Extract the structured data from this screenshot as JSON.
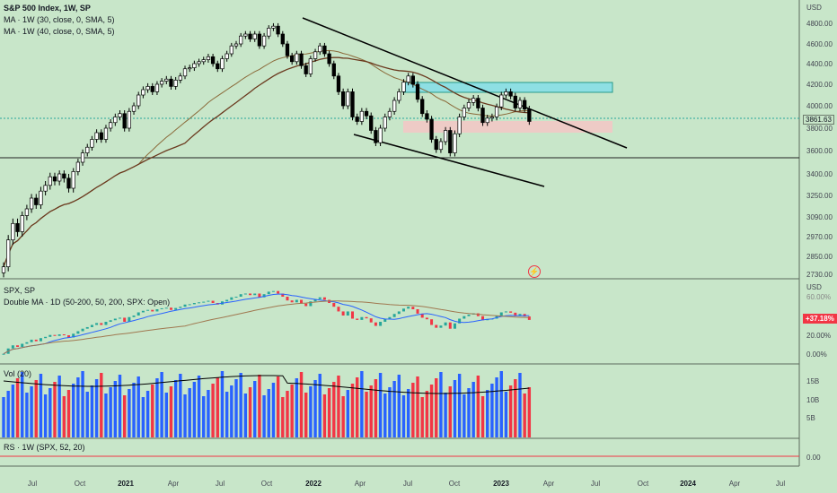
{
  "main_pane": {
    "title": "S&P 500 Index, 1W, SP",
    "ma1": "MA · 1W (30, close, 0, SMA, 5)",
    "ma2": "MA · 1W (40, close, 0, SMA, 5)",
    "currency": "USD",
    "price_ticks": [
      "4800.00",
      "4600.00",
      "4400.00",
      "4200.00",
      "4000.00",
      "3800.00",
      "3600.00",
      "3400.00",
      "3250.00",
      "3090.00",
      "2970.00",
      "2850.00",
      "2730.00"
    ],
    "last_price": "3861.63",
    "flash_icon": "⚡"
  },
  "pane2": {
    "title": "SPX, SP",
    "subtitle": "Double MA · 1D (50-200, 50, 200, SPX: Open)",
    "currency": "USD",
    "ticks": [
      "60.00%",
      "20.00%",
      "0.00%"
    ],
    "badge": "+37.18%"
  },
  "pane3": {
    "title": "Vol (20)",
    "ticks": [
      "15B",
      "10B",
      "5B"
    ]
  },
  "pane4": {
    "title": "RS · 1W (SPX, 52, 20)",
    "ticks": [
      "0.00"
    ]
  },
  "time_axis": [
    "Jul",
    "Oct",
    "2021",
    "Apr",
    "Jul",
    "Oct",
    "2022",
    "Apr",
    "Jul",
    "Oct",
    "2023",
    "Apr",
    "Jul",
    "Oct",
    "2024",
    "Apr",
    "Jul"
  ],
  "colors": {
    "background": "#c8e6c9",
    "up": "#ffffff",
    "down": "#000000",
    "ma30": "#8b6a3a",
    "ma40": "#6b3a1f",
    "vol_up": "#2962ff",
    "vol_down": "#f23645",
    "line_blue": "#2962ff",
    "line_red": "#f23645"
  },
  "chart_data": {
    "type": "candlestick",
    "title": "S&P 500 Index, 1W, SP",
    "close_series": [
      2780,
      2950,
      3050,
      3000,
      3100,
      3150,
      3230,
      3180,
      3280,
      3320,
      3380,
      3350,
      3400,
      3370,
      3300,
      3420,
      3500,
      3580,
      3630,
      3700,
      3760,
      3700,
      3800,
      3850,
      3900,
      3930,
      3800,
      3950,
      4000,
      4100,
      4150,
      4180,
      4130,
      4200,
      4230,
      4250,
      4180,
      4240,
      4280,
      4350,
      4360,
      4400,
      4420,
      4440,
      4470,
      4400,
      4350,
      4450,
      4500,
      4580,
      4600,
      4680,
      4700,
      4650,
      4700,
      4580,
      4680,
      4760,
      4780,
      4700,
      4600,
      4480,
      4420,
      4500,
      4380,
      4300,
      4450,
      4520,
      4580,
      4500,
      4400,
      4280,
      4130,
      4000,
      4130,
      3900,
      3860,
      3950,
      3910,
      3780,
      3670,
      3800,
      3900,
      3950,
      4050,
      4130,
      4220,
      4280,
      4200,
      4060,
      3930,
      3880,
      3700,
      3610,
      3680,
      3780,
      3580,
      3750,
      3900,
      3980,
      4030,
      4070,
      3980,
      3850,
      3890,
      3900,
      3990,
      4100,
      4130,
      4090,
      3980,
      4050,
      3970,
      3860
    ]
  }
}
